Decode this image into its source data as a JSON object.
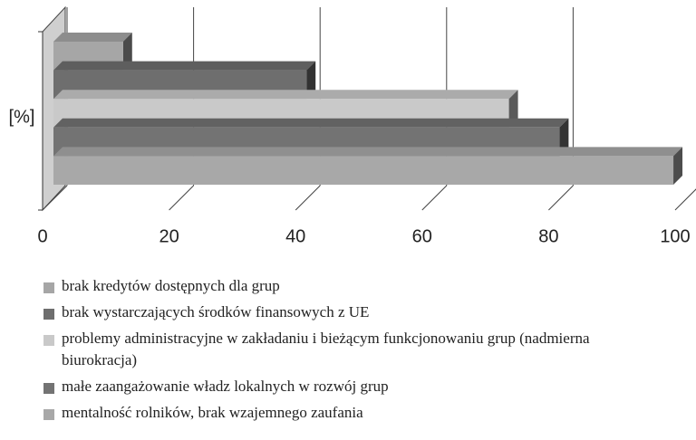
{
  "chart_data": {
    "type": "bar3d_horizontal",
    "ylabel": "[%]",
    "categories": [
      null
    ],
    "series": [
      {
        "name": "brak kredytów dostępnych dla grup",
        "color": "#a6a6a6",
        "values": [
          11
        ]
      },
      {
        "name": "brak wystarczających środków finansowych z UE",
        "color": "#6e6e6e",
        "values": [
          40
        ]
      },
      {
        "name": "problemy administracyjne w zakładaniu i bieżącym funkcjonowaniu grup (nadmierna biurokracja)",
        "color": "#c9c9c9",
        "values": [
          72
        ]
      },
      {
        "name": "małe zaangażowanie władz lokalnych w rozwój grup",
        "color": "#737373",
        "values": [
          80
        ]
      },
      {
        "name": "mentalność rolników, brak wzajemnego zaufania",
        "color": "#a8a8a8",
        "values": [
          98
        ]
      }
    ],
    "xlim": [
      0,
      100
    ],
    "xticks": [
      0,
      20,
      40,
      60,
      80,
      100
    ],
    "grid": true,
    "legend": "bottom"
  }
}
